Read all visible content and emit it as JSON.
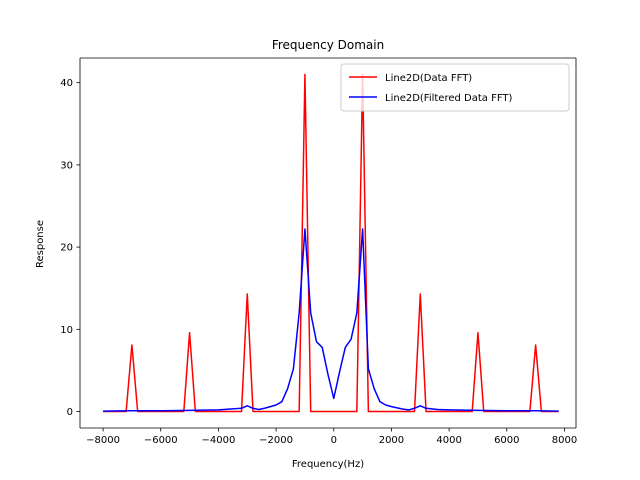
{
  "chart_data": {
    "type": "line",
    "title": "Frequency Domain",
    "xlabel": "Frequency(Hz)",
    "ylabel": "Response",
    "xlim": [
      -8800,
      8400
    ],
    "ylim": [
      -2.0,
      43.0
    ],
    "xticks": [
      -8000,
      -6000,
      -4000,
      -2000,
      0,
      2000,
      4000,
      6000,
      8000
    ],
    "xtick_labels": [
      "−8000",
      "−6000",
      "−4000",
      "−2000",
      "0",
      "2000",
      "4000",
      "6000",
      "8000"
    ],
    "yticks": [
      0,
      10,
      20,
      30,
      40
    ],
    "ytick_labels": [
      "0",
      "10",
      "20",
      "30",
      "40"
    ],
    "grid": false,
    "legend_position": "top-right",
    "series": [
      {
        "name": "Line2D(Data FFT)",
        "color": "#ff0000",
        "x": [
          -8000,
          -7200,
          -7000,
          -6800,
          -5200,
          -5000,
          -4800,
          -3200,
          -3000,
          -2800,
          -1200,
          -1000,
          -800,
          800,
          1000,
          1200,
          2800,
          3000,
          3200,
          4800,
          5000,
          5200,
          6800,
          7000,
          7200,
          7800
        ],
        "y": [
          0,
          0,
          8.1,
          0,
          0,
          9.6,
          0,
          0,
          14.3,
          0,
          0,
          41.0,
          0,
          0,
          41.0,
          0,
          0,
          14.3,
          0,
          0,
          9.6,
          0,
          0,
          8.1,
          0,
          0
        ]
      },
      {
        "name": "Line2D(Filtered Data FFT)",
        "color": "#0000ff",
        "x": [
          -8000,
          -7000,
          -6000,
          -5000,
          -4000,
          -3200,
          -3000,
          -2800,
          -2600,
          -2400,
          -2000,
          -1800,
          -1600,
          -1400,
          -1200,
          -1000,
          -800,
          -600,
          -400,
          -200,
          0,
          200,
          400,
          600,
          800,
          1000,
          1200,
          1400,
          1600,
          1800,
          2000,
          2400,
          2600,
          2800,
          3000,
          3200,
          3600,
          4000,
          5000,
          6000,
          7000,
          7800
        ],
        "y": [
          0.05,
          0.1,
          0.1,
          0.15,
          0.2,
          0.4,
          0.7,
          0.4,
          0.25,
          0.4,
          0.8,
          1.2,
          2.8,
          5.2,
          12.0,
          22.2,
          12.0,
          8.5,
          7.8,
          4.5,
          1.6,
          4.8,
          7.8,
          8.8,
          12.0,
          22.2,
          5.2,
          2.8,
          1.2,
          0.8,
          0.6,
          0.3,
          0.2,
          0.4,
          0.7,
          0.4,
          0.25,
          0.2,
          0.15,
          0.1,
          0.1,
          0.05
        ]
      }
    ]
  }
}
